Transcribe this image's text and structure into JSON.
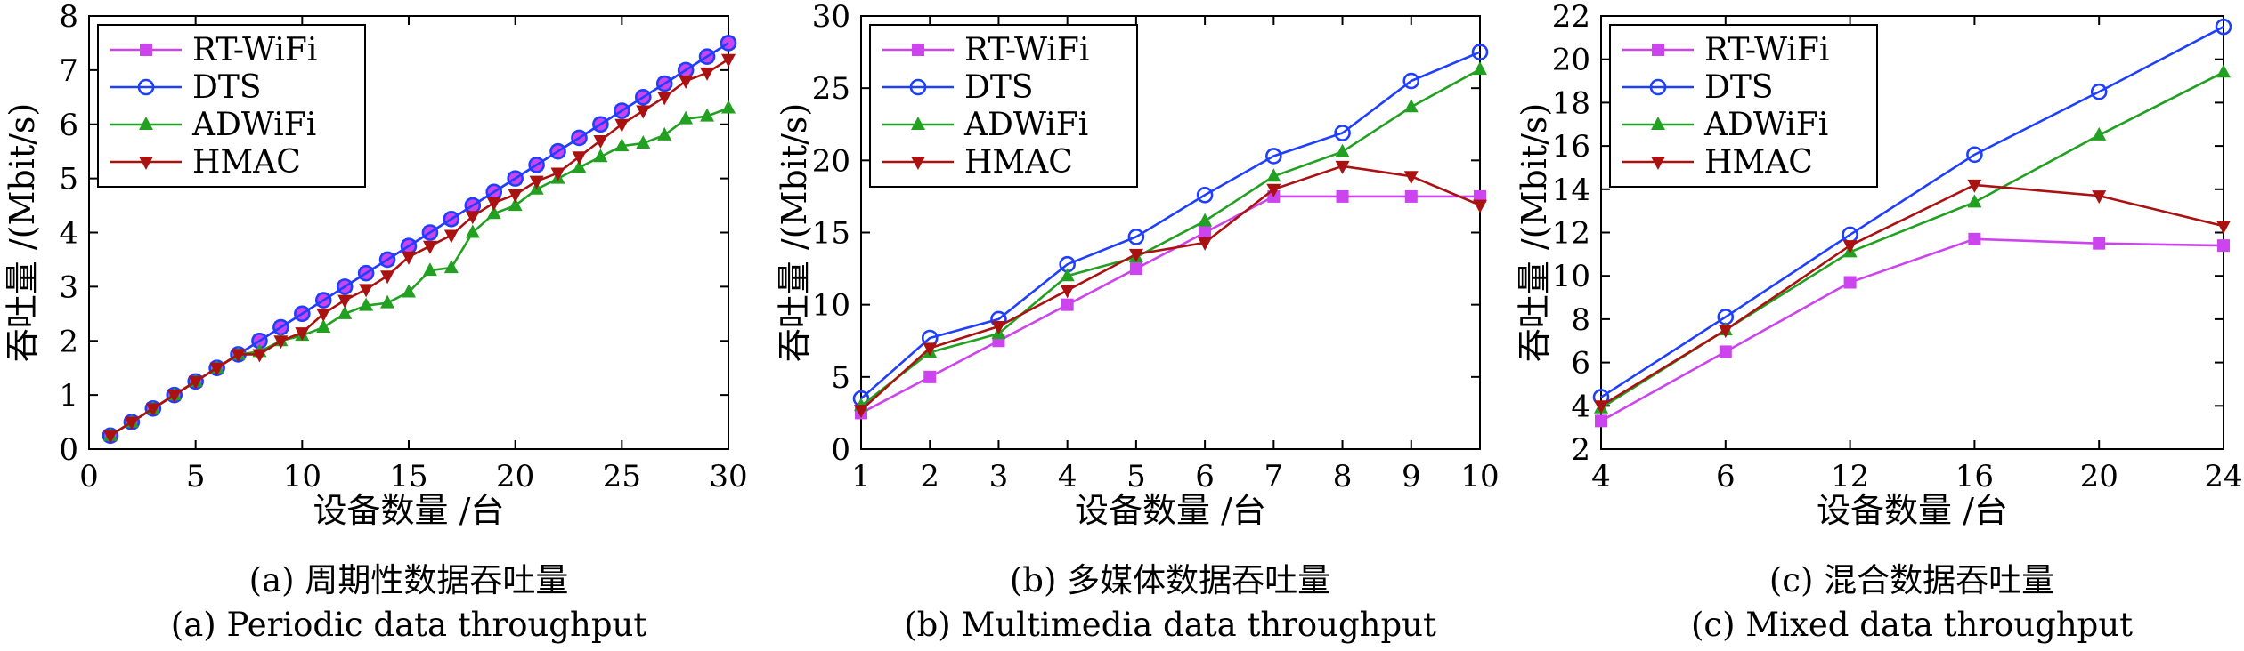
{
  "chart_data": [
    {
      "type": "line",
      "panel_caption_cn": "(a) 周期性数据吞吐量",
      "panel_caption_en": "(a) Periodic data throughput",
      "xlabel": "设备数量 /台",
      "ylabel": "吞吐量 /(Mbit/s)",
      "xlim": [
        0,
        30
      ],
      "ylim": [
        0,
        8
      ],
      "x_ticks": [
        "0",
        "5",
        "10",
        "15",
        "20",
        "25",
        "30"
      ],
      "y_ticks": [
        "0",
        "1",
        "2",
        "3",
        "4",
        "5",
        "6",
        "7",
        "8"
      ],
      "legend_position": "top-left",
      "x": [
        1,
        2,
        3,
        4,
        5,
        6,
        7,
        8,
        9,
        10,
        11,
        12,
        13,
        14,
        15,
        16,
        17,
        18,
        19,
        20,
        21,
        22,
        23,
        24,
        25,
        26,
        27,
        28,
        29,
        30
      ],
      "series": [
        {
          "name": "RT-WiFi",
          "color": "#cc44ee",
          "marker": "square",
          "values": [
            0.25,
            0.5,
            0.75,
            1.0,
            1.25,
            1.5,
            1.75,
            2.0,
            2.25,
            2.5,
            2.75,
            3.0,
            3.25,
            3.5,
            3.75,
            4.0,
            4.25,
            4.5,
            4.75,
            5.0,
            5.25,
            5.5,
            5.75,
            6.0,
            6.25,
            6.5,
            6.75,
            7.0,
            7.25,
            7.5
          ]
        },
        {
          "name": "DTS",
          "color": "#1f3fff",
          "marker": "circle",
          "values": [
            0.25,
            0.5,
            0.75,
            1.0,
            1.25,
            1.5,
            1.75,
            2.0,
            2.25,
            2.5,
            2.75,
            3.0,
            3.25,
            3.5,
            3.75,
            4.0,
            4.25,
            4.5,
            4.75,
            5.0,
            5.25,
            5.5,
            5.75,
            6.0,
            6.25,
            6.5,
            6.75,
            7.0,
            7.25,
            7.5
          ]
        },
        {
          "name": "ADWiFi",
          "color": "#22a022",
          "marker": "triangle-up",
          "values": [
            0.25,
            0.5,
            0.75,
            1.0,
            1.25,
            1.5,
            1.75,
            1.8,
            2.0,
            2.1,
            2.25,
            2.5,
            2.65,
            2.7,
            2.9,
            3.3,
            3.35,
            4.0,
            4.35,
            4.5,
            4.8,
            5.0,
            5.2,
            5.4,
            5.6,
            5.65,
            5.8,
            6.1,
            6.15,
            6.3
          ]
        },
        {
          "name": "HMAC",
          "color": "#aa1111",
          "marker": "triangle-down",
          "values": [
            0.25,
            0.5,
            0.75,
            1.0,
            1.25,
            1.5,
            1.75,
            1.75,
            2.0,
            2.15,
            2.5,
            2.75,
            2.95,
            3.2,
            3.55,
            3.75,
            3.95,
            4.3,
            4.55,
            4.7,
            4.95,
            5.1,
            5.4,
            5.7,
            6.0,
            6.25,
            6.5,
            6.8,
            6.95,
            7.2
          ]
        }
      ]
    },
    {
      "type": "line",
      "panel_caption_cn": "(b) 多媒体数据吞吐量",
      "panel_caption_en": "(b) Multimedia data throughput",
      "xlabel": "设备数量 /台",
      "ylabel": "吞吐量 /(Mbit/s)",
      "xlim": [
        1,
        10
      ],
      "ylim": [
        0,
        30
      ],
      "x_ticks": [
        "1",
        "2",
        "3",
        "4",
        "5",
        "6",
        "7",
        "8",
        "9",
        "10"
      ],
      "y_ticks": [
        "0",
        "5",
        "10",
        "15",
        "20",
        "25",
        "30"
      ],
      "legend_position": "top-left",
      "x": [
        1,
        2,
        3,
        4,
        5,
        6,
        7,
        8,
        9,
        10
      ],
      "series": [
        {
          "name": "RT-WiFi",
          "color": "#cc44ee",
          "marker": "square",
          "values": [
            2.5,
            5.0,
            7.5,
            10.0,
            12.5,
            15.0,
            17.5,
            17.5,
            17.5,
            17.5
          ]
        },
        {
          "name": "DTS",
          "color": "#1f3fff",
          "marker": "circle",
          "values": [
            3.5,
            7.7,
            9.0,
            12.8,
            14.7,
            17.6,
            20.3,
            21.9,
            25.5,
            27.5
          ]
        },
        {
          "name": "ADWiFi",
          "color": "#22a022",
          "marker": "triangle-up",
          "values": [
            3.0,
            6.7,
            8.0,
            12.0,
            13.3,
            15.8,
            18.9,
            20.6,
            23.7,
            26.3
          ]
        },
        {
          "name": "HMAC",
          "color": "#aa1111",
          "marker": "triangle-down",
          "values": [
            2.7,
            7.0,
            8.5,
            11.0,
            13.5,
            14.3,
            18.0,
            19.6,
            18.9,
            16.9
          ]
        }
      ]
    },
    {
      "type": "line",
      "panel_caption_cn": "(c) 混合数据吞吐量",
      "panel_caption_en": "(c) Mixed data throughput",
      "xlabel": "设备数量 /台",
      "ylabel": "吞吐量 /(Mbit/s)",
      "categories": [
        "4",
        "6",
        "12",
        "16",
        "20",
        "24"
      ],
      "ylim": [
        2,
        22
      ],
      "y_ticks": [
        "2",
        "4",
        "6",
        "8",
        "10",
        "12",
        "14",
        "16",
        "18",
        "20",
        "22"
      ],
      "legend_position": "top-left",
      "series": [
        {
          "name": "RT-WiFi",
          "color": "#cc44ee",
          "marker": "square",
          "values": [
            3.3,
            6.5,
            9.7,
            11.7,
            11.5,
            11.4
          ]
        },
        {
          "name": "DTS",
          "color": "#1f3fff",
          "marker": "circle",
          "values": [
            4.4,
            8.1,
            11.9,
            15.6,
            18.5,
            21.5
          ]
        },
        {
          "name": "ADWiFi",
          "color": "#22a022",
          "marker": "triangle-up",
          "values": [
            3.9,
            7.5,
            11.1,
            13.4,
            16.5,
            19.4
          ]
        },
        {
          "name": "HMAC",
          "color": "#aa1111",
          "marker": "triangle-down",
          "values": [
            4.0,
            7.5,
            11.4,
            14.2,
            13.7,
            12.3
          ]
        }
      ]
    }
  ]
}
